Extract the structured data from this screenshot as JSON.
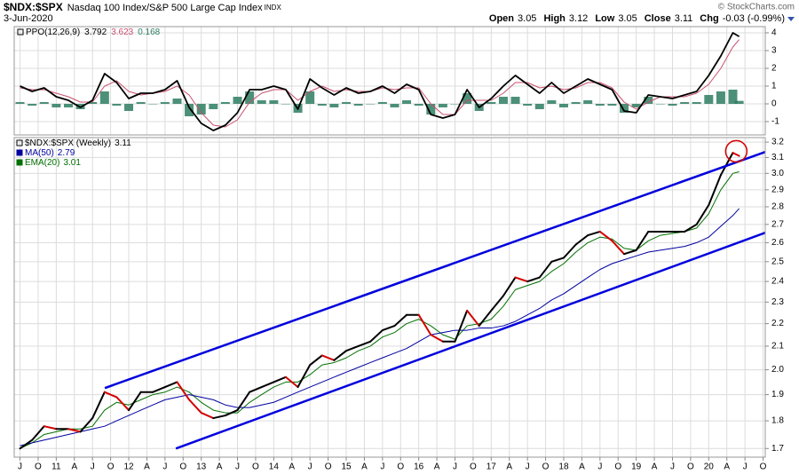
{
  "header": {
    "symbol": "$NDX:$SPX",
    "description": "Nasdaq 100 Index/S&P 500 Large Cap Index",
    "exchange": "INDX",
    "date": "3-Jun-2020",
    "copyright": "© StockCharts.com",
    "quote": [
      {
        "label": "Open",
        "value": 3.05
      },
      {
        "label": "High",
        "value": 3.12
      },
      {
        "label": "Low",
        "value": 3.05
      },
      {
        "label": "Close",
        "value": 3.11
      },
      {
        "label": "Chg",
        "value": "-0.03 (-0.99%)"
      }
    ]
  },
  "chart_data": [
    {
      "type": "line",
      "x": [
        2010.5,
        2010.667,
        2010.833,
        2011,
        2011.167,
        2011.333,
        2011.5,
        2011.667,
        2011.833,
        2012,
        2012.167,
        2012.333,
        2012.5,
        2012.667,
        2012.833,
        2013,
        2013.167,
        2013.333,
        2013.5,
        2013.667,
        2013.833,
        2014,
        2014.167,
        2014.333,
        2014.5,
        2014.667,
        2014.833,
        2015,
        2015.167,
        2015.333,
        2015.5,
        2015.667,
        2015.833,
        2016,
        2016.167,
        2016.333,
        2016.5,
        2016.667,
        2016.833,
        2017,
        2017.167,
        2017.333,
        2017.5,
        2017.667,
        2017.833,
        2018,
        2018.167,
        2018.333,
        2018.5,
        2018.667,
        2018.833,
        2019,
        2019.167,
        2019.333,
        2019.5,
        2019.667,
        2019.833,
        2020,
        2020.167,
        2020.333,
        2020.42
      ],
      "xlim": [
        2010.42,
        2020.78
      ],
      "ylim": [
        -1.75,
        4.35
      ],
      "yticks": [
        -1,
        0,
        1,
        2,
        3,
        4
      ],
      "grid": true,
      "series": [
        {
          "name": "PPO(12,26,9)",
          "color": "#000000",
          "values": [
            1.0,
            0.7,
            0.9,
            0.4,
            0.2,
            -0.2,
            0.2,
            1.7,
            1.2,
            0.3,
            0.6,
            0.6,
            0.8,
            1.3,
            -0.2,
            -1.1,
            -1.5,
            -1.2,
            -0.5,
            0.8,
            0.8,
            1.0,
            0.8,
            -0.3,
            1.4,
            0.9,
            0.5,
            0.9,
            0.6,
            0.7,
            1.0,
            0.6,
            1.1,
            0.8,
            -0.6,
            -0.8,
            -0.6,
            0.8,
            -0.2,
            0.3,
            1.0,
            1.6,
            1.1,
            0.6,
            1.2,
            0.6,
            1.0,
            1.4,
            1.1,
            0.8,
            -0.4,
            -0.5,
            0.5,
            0.4,
            0.3,
            0.5,
            0.7,
            1.6,
            2.7,
            4.0,
            3.792
          ]
        },
        {
          "color": "#c8506e",
          "values": [
            0.9,
            0.8,
            0.8,
            0.6,
            0.4,
            0.1,
            0.1,
            1.0,
            1.3,
            0.7,
            0.5,
            0.6,
            0.7,
            1.0,
            0.5,
            -0.5,
            -1.2,
            -1.3,
            -0.9,
            0.1,
            0.6,
            0.8,
            0.8,
            0.2,
            0.7,
            1.0,
            0.7,
            0.8,
            0.7,
            0.7,
            0.9,
            0.8,
            0.9,
            0.9,
            0.0,
            -0.6,
            -0.6,
            0.2,
            0.2,
            0.2,
            0.6,
            1.2,
            1.2,
            0.9,
            1.0,
            0.8,
            0.9,
            1.2,
            1.2,
            0.9,
            0.1,
            -0.3,
            0.1,
            0.4,
            0.4,
            0.4,
            0.6,
            1.1,
            2.0,
            3.2,
            3.623
          ]
        },
        {
          "type": "bar",
          "color": "#2e7d62",
          "values": [
            0.1,
            -0.1,
            0.1,
            -0.2,
            -0.2,
            -0.3,
            0.1,
            0.7,
            -0.1,
            -0.4,
            0.1,
            0,
            0.1,
            0.3,
            -0.7,
            -0.6,
            -0.3,
            0.1,
            0.4,
            0.7,
            0.2,
            0.2,
            0,
            -0.5,
            0.7,
            -0.1,
            -0.2,
            0.1,
            -0.1,
            0,
            0.1,
            -0.2,
            0.2,
            -0.1,
            -0.6,
            -0.2,
            0,
            0.6,
            -0.4,
            0.1,
            0.4,
            0.4,
            -0.1,
            -0.3,
            0.2,
            -0.2,
            0.1,
            0.2,
            -0.1,
            -0.1,
            -0.5,
            -0.2,
            0.4,
            0,
            -0.1,
            0.1,
            0.1,
            0.5,
            0.7,
            0.8,
            0.168
          ]
        }
      ]
    },
    {
      "type": "line",
      "log_scale": true,
      "grid": true,
      "x": [
        2010.5,
        2010.667,
        2010.833,
        2011,
        2011.167,
        2011.333,
        2011.5,
        2011.667,
        2011.833,
        2012,
        2012.167,
        2012.333,
        2012.5,
        2012.667,
        2012.833,
        2013,
        2013.167,
        2013.333,
        2013.5,
        2013.667,
        2013.833,
        2014,
        2014.167,
        2014.333,
        2014.5,
        2014.667,
        2014.833,
        2015,
        2015.167,
        2015.333,
        2015.5,
        2015.667,
        2015.833,
        2016,
        2016.167,
        2016.333,
        2016.5,
        2016.667,
        2016.833,
        2017,
        2017.167,
        2017.333,
        2017.5,
        2017.667,
        2017.833,
        2018,
        2018.167,
        2018.333,
        2018.5,
        2018.667,
        2018.833,
        2019,
        2019.167,
        2019.333,
        2019.5,
        2019.667,
        2019.833,
        2020,
        2020.167,
        2020.333,
        2020.42
      ],
      "xlim": [
        2010.42,
        2020.78
      ],
      "xticks": [
        {
          "value": 2010.5,
          "label": "J"
        },
        {
          "value": 2010.75,
          "label": "O"
        },
        {
          "value": 2011,
          "label": "11"
        },
        {
          "value": 2011.25,
          "label": "A"
        },
        {
          "value": 2011.5,
          "label": "J"
        },
        {
          "value": 2011.75,
          "label": "O"
        },
        {
          "value": 2012,
          "label": "12"
        },
        {
          "value": 2012.25,
          "label": "A"
        },
        {
          "value": 2012.5,
          "label": "J"
        },
        {
          "value": 2012.75,
          "label": "O"
        },
        {
          "value": 2013,
          "label": "13"
        },
        {
          "value": 2013.25,
          "label": "A"
        },
        {
          "value": 2013.5,
          "label": "J"
        },
        {
          "value": 2013.75,
          "label": "O"
        },
        {
          "value": 2014,
          "label": "14"
        },
        {
          "value": 2014.25,
          "label": "A"
        },
        {
          "value": 2014.5,
          "label": "J"
        },
        {
          "value": 2014.75,
          "label": "O"
        },
        {
          "value": 2015,
          "label": "15"
        },
        {
          "value": 2015.25,
          "label": "A"
        },
        {
          "value": 2015.5,
          "label": "J"
        },
        {
          "value": 2015.75,
          "label": "O"
        },
        {
          "value": 2016,
          "label": "16"
        },
        {
          "value": 2016.25,
          "label": "A"
        },
        {
          "value": 2016.5,
          "label": "J"
        },
        {
          "value": 2016.75,
          "label": "O"
        },
        {
          "value": 2017,
          "label": "17"
        },
        {
          "value": 2017.25,
          "label": "A"
        },
        {
          "value": 2017.5,
          "label": "J"
        },
        {
          "value": 2017.75,
          "label": "O"
        },
        {
          "value": 2018,
          "label": "18"
        },
        {
          "value": 2018.25,
          "label": "A"
        },
        {
          "value": 2018.5,
          "label": "J"
        },
        {
          "value": 2018.75,
          "label": "O"
        },
        {
          "value": 2019,
          "label": "19"
        },
        {
          "value": 2019.25,
          "label": "A"
        },
        {
          "value": 2019.5,
          "label": "J"
        },
        {
          "value": 2019.75,
          "label": "O"
        },
        {
          "value": 2020,
          "label": "20"
        },
        {
          "value": 2020.25,
          "label": "A"
        },
        {
          "value": 2020.5,
          "label": "J"
        },
        {
          "value": 2020.75,
          "label": "O"
        }
      ],
      "ylim": [
        1.67,
        3.23
      ],
      "yticks": [
        1.7,
        1.8,
        1.9,
        {
          "value": 2,
          "label": "2.0"
        },
        2.1,
        2.2,
        2.3,
        2.4,
        2.5,
        2.6,
        2.7,
        2.8,
        2.9,
        {
          "value": 3,
          "label": "3.0"
        },
        3.1,
        3.2
      ],
      "series": [
        {
          "name": "$NDX:$SPX (Weekly)",
          "color": "#000000",
          "down_color": "#d40000",
          "values": [
            1.7,
            1.73,
            1.78,
            1.77,
            1.77,
            1.76,
            1.81,
            1.91,
            1.89,
            1.84,
            1.91,
            1.91,
            1.93,
            1.95,
            1.88,
            1.83,
            1.81,
            1.82,
            1.84,
            1.91,
            1.93,
            1.95,
            1.97,
            1.93,
            2.02,
            2.06,
            2.04,
            2.08,
            2.1,
            2.12,
            2.17,
            2.19,
            2.24,
            2.24,
            2.15,
            2.12,
            2.12,
            2.26,
            2.19,
            2.26,
            2.33,
            2.42,
            2.4,
            2.42,
            2.5,
            2.52,
            2.59,
            2.64,
            2.66,
            2.61,
            2.54,
            2.56,
            2.66,
            2.66,
            2.66,
            2.66,
            2.7,
            2.81,
            2.99,
            3.13,
            3.11
          ]
        },
        {
          "name": "MA(50)",
          "color": "#0000a0",
          "values": [
            1.71,
            1.72,
            1.73,
            1.74,
            1.75,
            1.76,
            1.77,
            1.78,
            1.8,
            1.82,
            1.84,
            1.86,
            1.88,
            1.89,
            1.9,
            1.89,
            1.88,
            1.86,
            1.85,
            1.85,
            1.86,
            1.87,
            1.89,
            1.91,
            1.93,
            1.95,
            1.97,
            1.99,
            2.01,
            2.03,
            2.05,
            2.07,
            2.09,
            2.12,
            2.15,
            2.16,
            2.17,
            2.17,
            2.18,
            2.18,
            2.19,
            2.21,
            2.24,
            2.27,
            2.31,
            2.34,
            2.38,
            2.42,
            2.46,
            2.49,
            2.51,
            2.53,
            2.55,
            2.56,
            2.57,
            2.58,
            2.6,
            2.63,
            2.69,
            2.75,
            2.79
          ]
        },
        {
          "name": "EMA(20)",
          "color": "#007000",
          "values": [
            1.7,
            1.72,
            1.75,
            1.76,
            1.77,
            1.77,
            1.78,
            1.84,
            1.87,
            1.86,
            1.88,
            1.9,
            1.91,
            1.93,
            1.91,
            1.87,
            1.84,
            1.83,
            1.83,
            1.87,
            1.9,
            1.93,
            1.95,
            1.95,
            1.98,
            2.02,
            2.03,
            2.05,
            2.08,
            2.1,
            2.14,
            2.16,
            2.2,
            2.22,
            2.19,
            2.15,
            2.13,
            2.19,
            2.2,
            2.22,
            2.28,
            2.36,
            2.38,
            2.4,
            2.45,
            2.49,
            2.55,
            2.6,
            2.63,
            2.62,
            2.57,
            2.56,
            2.61,
            2.64,
            2.65,
            2.66,
            2.68,
            2.76,
            2.9,
            3.0,
            3.01
          ]
        }
      ],
      "annotations": [
        {
          "type": "trendline",
          "color": "#0000dd",
          "x": [
            2011.67,
            2020.78
          ],
          "values": [
            1.926,
            3.136
          ]
        },
        {
          "type": "trendline",
          "color": "#0000dd",
          "x": [
            2012.65,
            2020.78
          ],
          "values": [
            1.7,
            2.654
          ]
        },
        {
          "type": "circle",
          "color": "#d40000",
          "x": 2020.38,
          "value": 3.14
        }
      ]
    }
  ]
}
